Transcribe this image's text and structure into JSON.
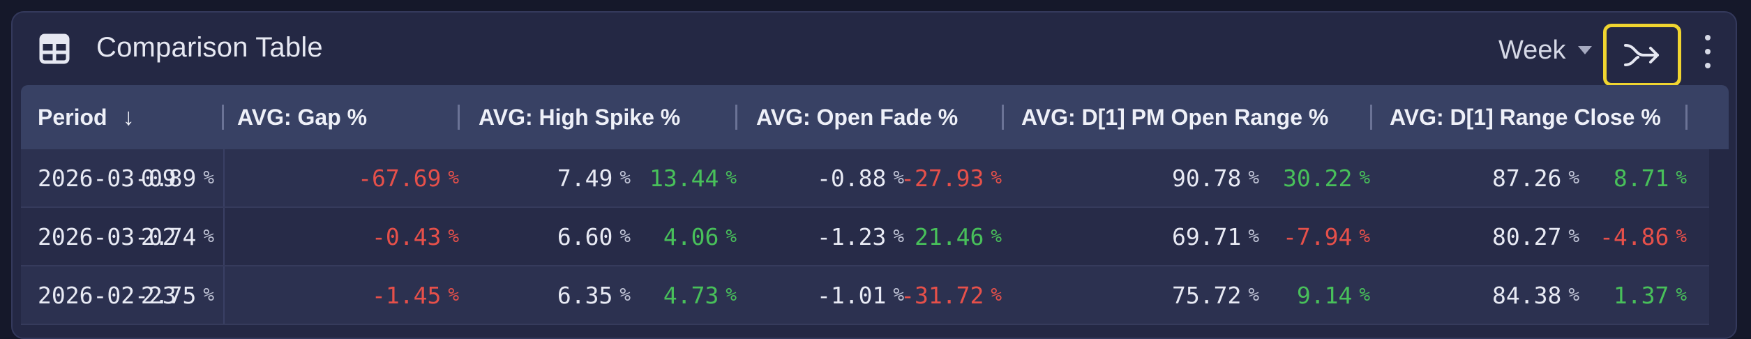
{
  "header": {
    "title": "Comparison Table",
    "period_select": "Week"
  },
  "table": {
    "columns": [
      "Period",
      "AVG: Gap %",
      "AVG: High Spike %",
      "AVG: Open Fade %",
      "AVG: D[1] PM Open Range %",
      "AVG: D[1] Range Close %"
    ],
    "sort": {
      "column": "Period",
      "direction": "descending",
      "icon": "arrow-down"
    },
    "unit": "%",
    "rows": [
      {
        "period": "2026-03-09",
        "cells": [
          {
            "value": "0.89",
            "change": "-67.69"
          },
          {
            "value": "7.49",
            "change": "13.44"
          },
          {
            "value": "-0.88",
            "change": "-27.93"
          },
          {
            "value": "90.78",
            "change": "30.22"
          },
          {
            "value": "87.26",
            "change": "8.71"
          }
        ]
      },
      {
        "period": "2026-03-02",
        "cells": [
          {
            "value": "2.74",
            "change": "-0.43"
          },
          {
            "value": "6.60",
            "change": "4.06"
          },
          {
            "value": "-1.23",
            "change": "21.46"
          },
          {
            "value": "69.71",
            "change": "-7.94"
          },
          {
            "value": "80.27",
            "change": "-4.86"
          }
        ]
      },
      {
        "period": "2026-02-23",
        "cells": [
          {
            "value": "2.75",
            "change": "-1.45"
          },
          {
            "value": "6.35",
            "change": "4.73"
          },
          {
            "value": "-1.01",
            "change": "-31.72"
          },
          {
            "value": "75.72",
            "change": "9.14"
          },
          {
            "value": "84.38",
            "change": "1.37"
          }
        ]
      }
    ]
  },
  "colors": {
    "positive": "#48c05a",
    "negative": "#e6504a",
    "highlight": "#f0d530"
  },
  "icons": {
    "title_icon": "table-icon",
    "compare_button": "merge-arrow-icon",
    "menu_button": "more-vertical-icon"
  }
}
